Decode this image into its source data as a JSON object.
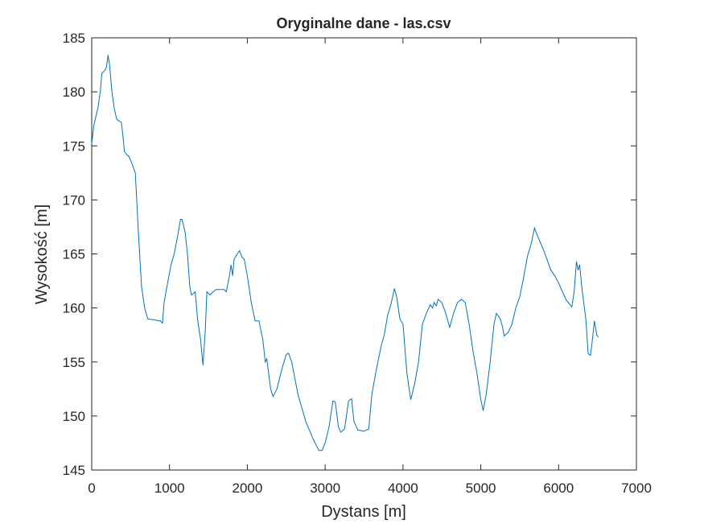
{
  "chart_data": {
    "type": "line",
    "title": "Oryginalne dane - las.csv",
    "xlabel": "Dystans [m]",
    "ylabel": "Wysokość [m]",
    "xlim": [
      0,
      7000
    ],
    "ylim": [
      145,
      185
    ],
    "xticks": [
      0,
      1000,
      2000,
      3000,
      4000,
      5000,
      6000,
      7000
    ],
    "yticks": [
      145,
      150,
      155,
      160,
      165,
      170,
      175,
      180,
      185
    ],
    "color": "#0072bd",
    "x": [
      0,
      30,
      80,
      110,
      130,
      170,
      190,
      210,
      230,
      260,
      290,
      320,
      350,
      380,
      400,
      420,
      450,
      480,
      520,
      560,
      600,
      640,
      680,
      720,
      800,
      880,
      910,
      930,
      980,
      1020,
      1060,
      1100,
      1140,
      1160,
      1200,
      1230,
      1260,
      1280,
      1300,
      1330,
      1360,
      1400,
      1430,
      1460,
      1480,
      1520,
      1560,
      1600,
      1700,
      1730,
      1770,
      1790,
      1810,
      1830,
      1870,
      1900,
      1930,
      1960,
      2000,
      2050,
      2100,
      2150,
      2200,
      2230,
      2250,
      2300,
      2330,
      2380,
      2450,
      2500,
      2530,
      2570,
      2650,
      2750,
      2850,
      2920,
      2960,
      3000,
      3050,
      3100,
      3130,
      3170,
      3200,
      3250,
      3300,
      3340,
      3370,
      3420,
      3500,
      3560,
      3600,
      3650,
      3720,
      3760,
      3800,
      3850,
      3890,
      3920,
      3960,
      4000,
      4050,
      4100,
      4150,
      4200,
      4250,
      4300,
      4350,
      4380,
      4400,
      4430,
      4450,
      4500,
      4550,
      4600,
      4650,
      4700,
      4750,
      4800,
      4850,
      4900,
      4950,
      5000,
      5030,
      5070,
      5120,
      5170,
      5200,
      5250,
      5280,
      5300,
      5350,
      5400,
      5450,
      5500,
      5550,
      5600,
      5650,
      5690,
      5750,
      5800,
      5850,
      5900,
      5950,
      6000,
      6050,
      6100,
      6170,
      6200,
      6230,
      6250,
      6270,
      6300,
      6350,
      6380,
      6410,
      6430,
      6460,
      6490,
      6510
    ],
    "values": [
      175.2,
      177,
      178.5,
      180,
      181.7,
      182,
      182.3,
      183.4,
      182.5,
      180,
      178.5,
      177.5,
      177.3,
      177.2,
      176,
      174.5,
      174.2,
      174,
      173.3,
      172.5,
      167,
      162,
      160,
      159,
      158.9,
      158.8,
      158.6,
      160.5,
      162.5,
      164,
      165,
      166.5,
      168.2,
      168.2,
      167,
      165,
      162,
      161.2,
      161.3,
      161.5,
      159,
      157,
      154.7,
      158,
      161.5,
      161.2,
      161.5,
      161.7,
      161.7,
      161.5,
      163,
      164,
      163,
      164.5,
      165,
      165.3,
      164.7,
      164.5,
      163,
      160.5,
      158.8,
      158.8,
      157,
      155,
      155.3,
      152.5,
      151.8,
      152.5,
      154.5,
      155.7,
      155.8,
      155,
      152,
      149.5,
      147.8,
      146.8,
      146.8,
      147.5,
      149,
      151.4,
      151.3,
      149,
      148.5,
      148.8,
      151.4,
      151.6,
      149.5,
      148.7,
      148.6,
      148.8,
      152,
      154,
      156.5,
      157.5,
      159.2,
      160.5,
      161.8,
      161,
      159,
      158.5,
      154,
      151.5,
      153,
      155,
      158.5,
      159.5,
      160.3,
      160,
      160.5,
      160.2,
      160.8,
      160.5,
      159.5,
      158.2,
      159.5,
      160.5,
      160.8,
      160.5,
      158.5,
      156,
      154,
      151.5,
      150.5,
      152,
      155,
      158.5,
      159.5,
      159,
      158.2,
      157.4,
      157.7,
      158.5,
      160,
      161,
      162.8,
      164.8,
      166,
      167.4,
      166.3,
      165.5,
      164.5,
      163.5,
      163,
      162.3,
      161.5,
      160.7,
      160.1,
      161.5,
      164.3,
      163.5,
      164,
      161.8,
      159,
      155.8,
      155.6,
      156.8,
      158.8,
      157.5,
      157.3
    ]
  }
}
